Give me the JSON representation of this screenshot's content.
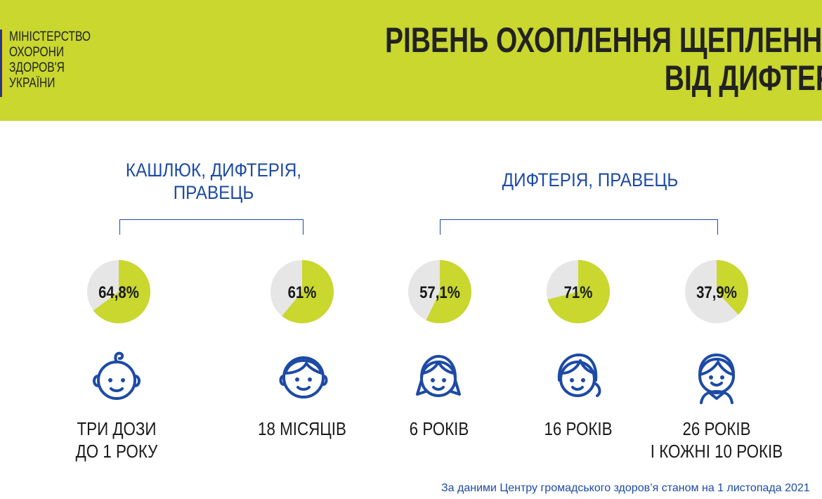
{
  "header": {
    "ministry_lines": [
      "МІНІСТЕРСТВО",
      "ОХОРОНИ",
      "ЗДОРОВ'Я",
      "УКРАЇНИ"
    ],
    "title_line1": "РІВЕНЬ ОХОПЛЕННЯ ЩЕПЛЕННЯМ",
    "title_line2": "ВІД ДИФТЕРІЇ",
    "background": "#c9d72e"
  },
  "groups": [
    {
      "label_line1": "КАШЛЮК, ДИФТЕРІЯ,",
      "label_line2": "ПРАВЕЦЬ"
    },
    {
      "label_line1": "ДИФТЕРІЯ, ПРАВЕЦЬ",
      "label_line2": ""
    }
  ],
  "colors": {
    "filled": "#c9d72e",
    "empty": "#e6e6e6",
    "accent": "#1d4aa6"
  },
  "chart_data": {
    "type": "pie",
    "items": [
      {
        "value": 64.8,
        "label": "64,8%",
        "icon": "baby-icon",
        "age_line1": "ТРИ ДОЗИ",
        "age_line2": "ДО 1 РОКУ"
      },
      {
        "value": 61.0,
        "label": "61%",
        "icon": "toddler-icon",
        "age_line1": "18 МІСЯЦІВ",
        "age_line2": ""
      },
      {
        "value": 57.1,
        "label": "57,1%",
        "icon": "girl-icon",
        "age_line1": "6 РОКІВ",
        "age_line2": ""
      },
      {
        "value": 71.0,
        "label": "71%",
        "icon": "teen-girl-icon",
        "age_line1": "16 РОКІВ",
        "age_line2": ""
      },
      {
        "value": 37.9,
        "label": "37,9%",
        "icon": "adult-icon",
        "age_line1": "26 РОКІВ",
        "age_line2": "І КОЖНІ 10 РОКІВ"
      }
    ]
  },
  "source": "За даними Центру громадського здоров’я станом на 1 листопада 2021"
}
